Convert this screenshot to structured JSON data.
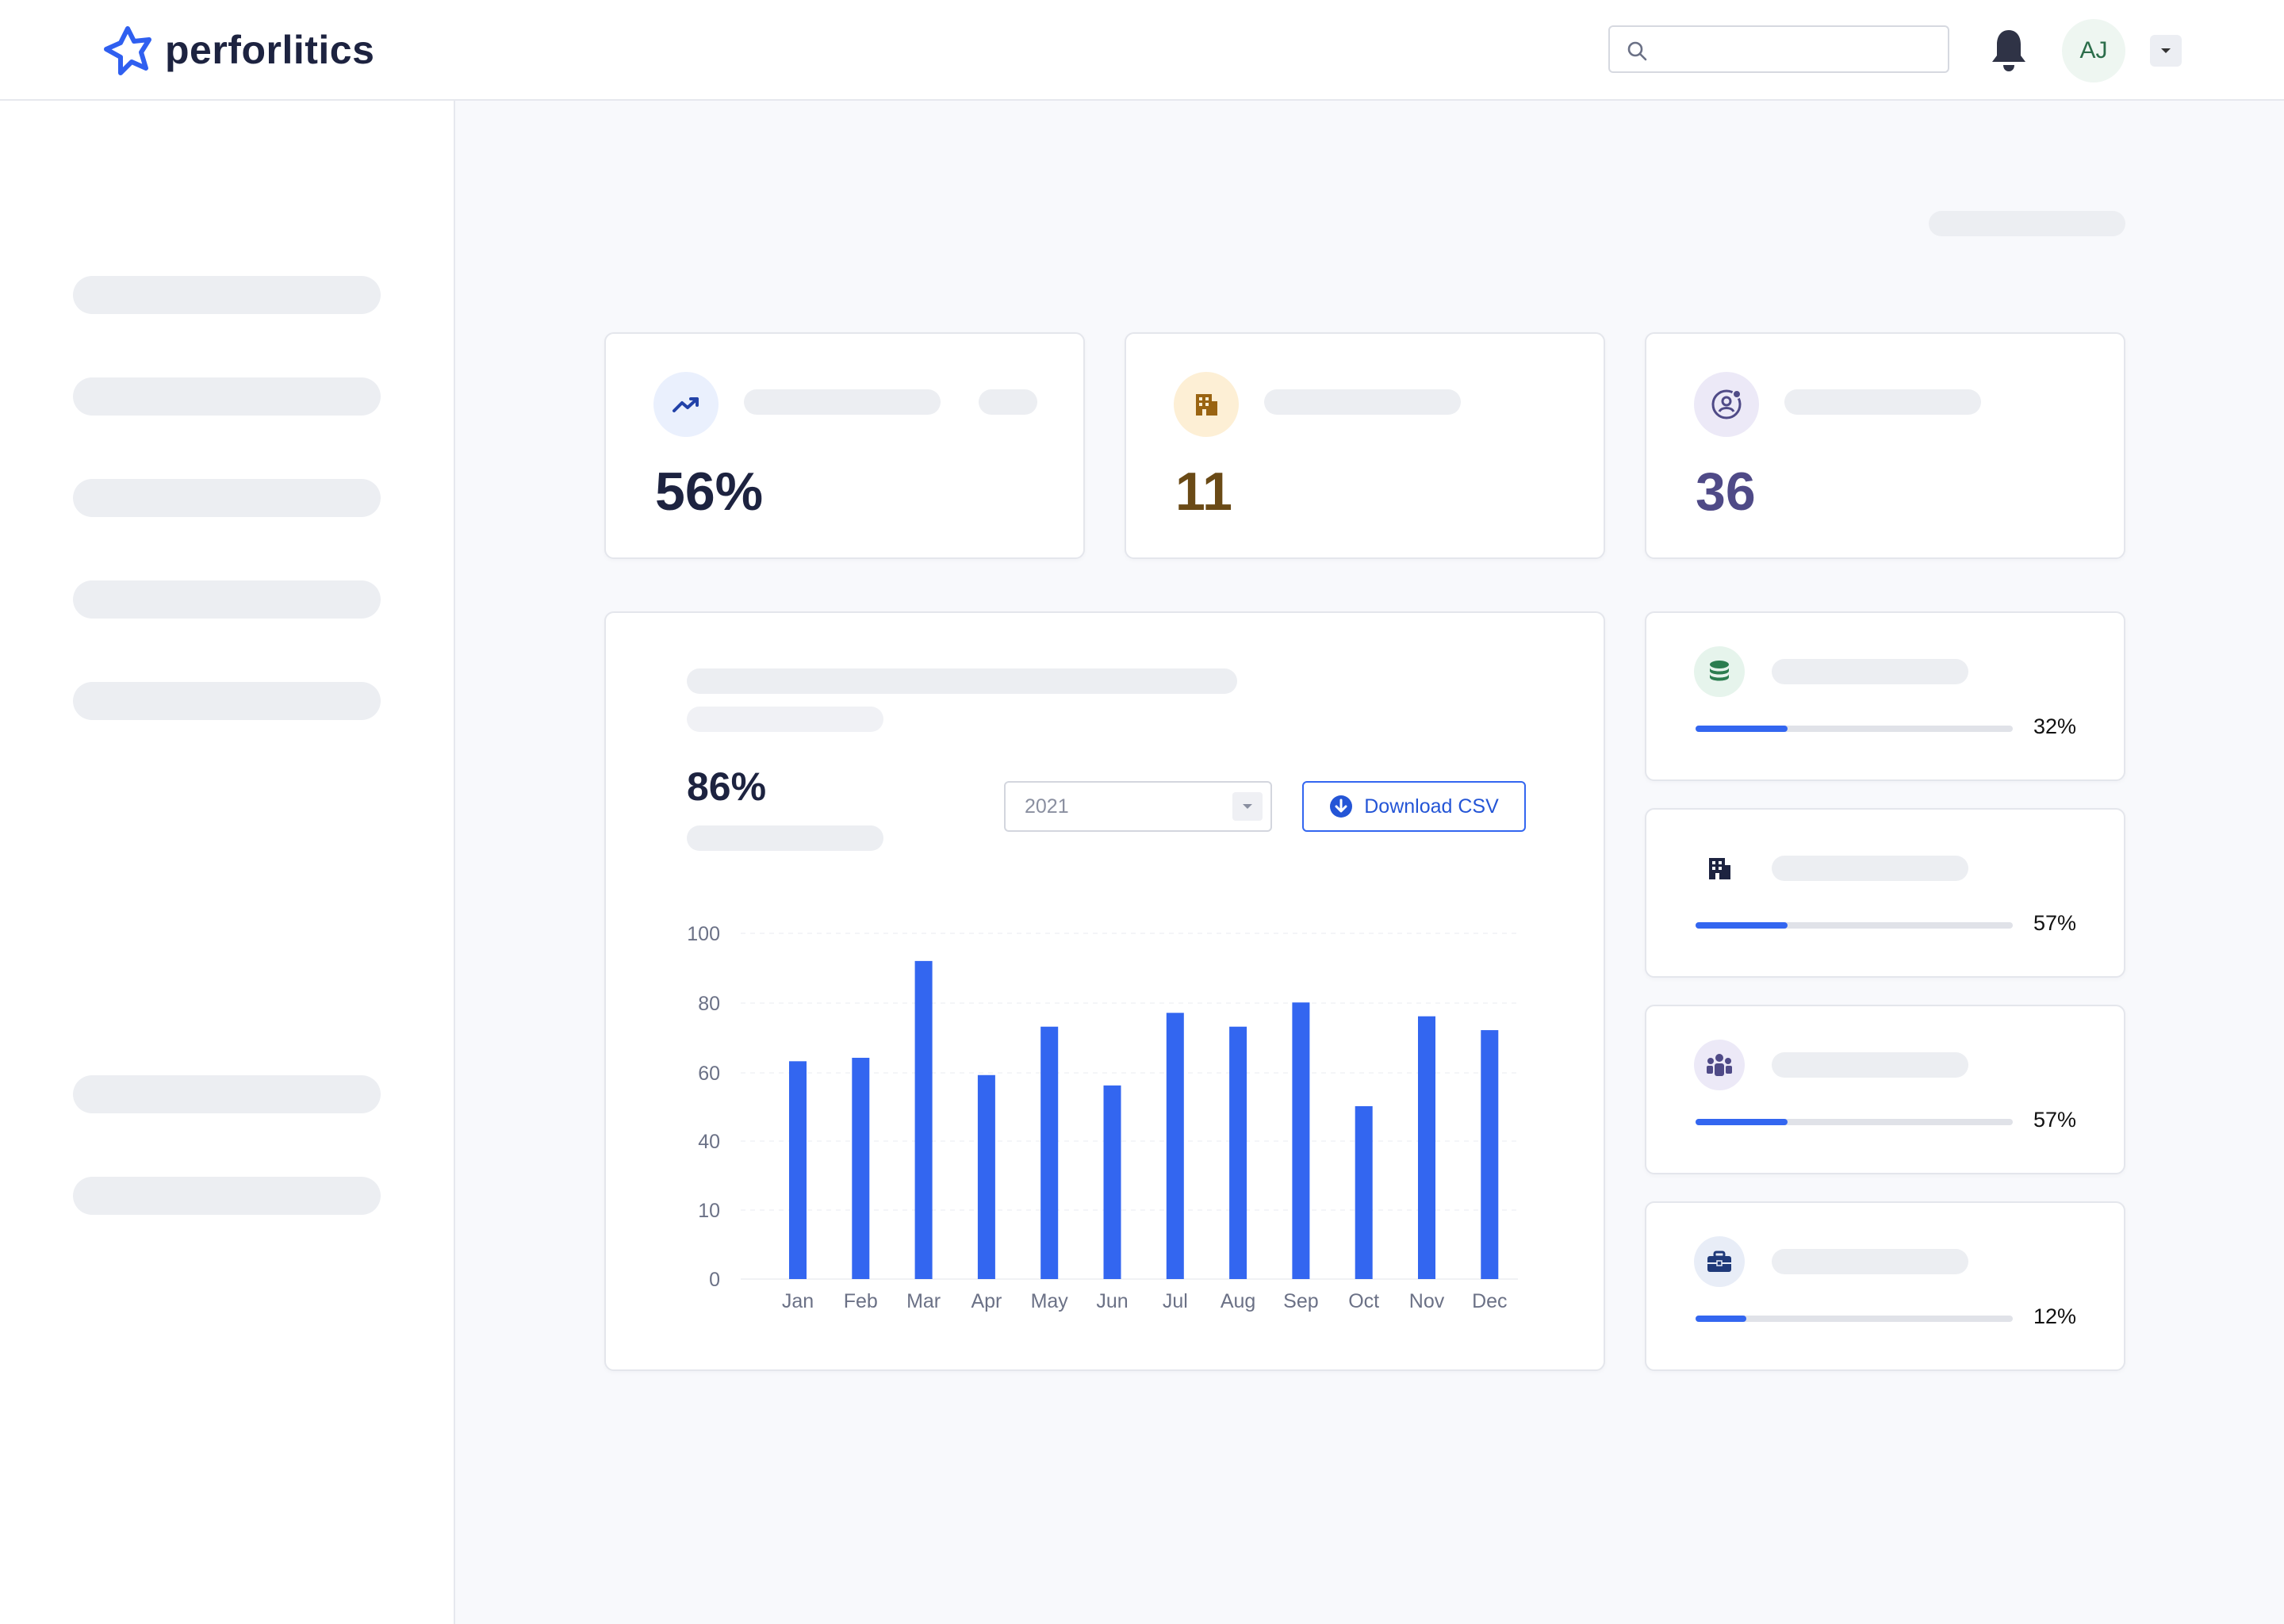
{
  "app": {
    "name": "perforlitics"
  },
  "header": {
    "search": {
      "placeholder": "",
      "value": ""
    },
    "avatar_initials": "AJ"
  },
  "stats": [
    {
      "value": "56%",
      "icon": "trending-up-icon",
      "color": "#1d2340",
      "icon_bg": "#eaf0fd",
      "icon_color": "#2242a8"
    },
    {
      "value": "11",
      "icon": "building-icon",
      "color": "#6a4a16",
      "icon_bg": "#fdefd5",
      "icon_color": "#9a6412"
    },
    {
      "value": "36",
      "icon": "user-circle-icon",
      "color": "#4f4a87",
      "icon_bg": "#ece9f7",
      "icon_color": "#4f4a87"
    }
  ],
  "chart_panel": {
    "metric": "86%",
    "year_select": {
      "value": "2021"
    },
    "download_label": "Download CSV"
  },
  "chart_data": {
    "type": "bar",
    "categories": [
      "Jan",
      "Feb",
      "Mar",
      "Apr",
      "May",
      "Jun",
      "Jul",
      "Aug",
      "Sep",
      "Oct",
      "Nov",
      "Dec"
    ],
    "values": [
      63,
      64,
      92,
      59,
      73,
      56,
      77,
      73,
      80,
      50,
      76,
      72
    ],
    "yticks": [
      "0",
      "10",
      "40",
      "60",
      "80",
      "100"
    ],
    "ylim": [
      0,
      100
    ],
    "title": "",
    "xlabel": "",
    "ylabel": "",
    "bar_color": "#3366f0",
    "grid": true
  },
  "side_cards": [
    {
      "icon": "coins-icon",
      "percent": "32%",
      "progress": 0.29,
      "icon_bg": "#e6f4ec",
      "icon_color": "#2b7d4f"
    },
    {
      "icon": "building-icon",
      "percent": "57%",
      "progress": 0.29,
      "icon_bg": "#ffffff",
      "icon_color": "#1d2340"
    },
    {
      "icon": "team-icon",
      "percent": "57%",
      "progress": 0.29,
      "icon_bg": "#ece9f7",
      "icon_color": "#4f4a87"
    },
    {
      "icon": "briefcase-icon",
      "percent": "12%",
      "progress": 0.16,
      "icon_bg": "#e8edf7",
      "icon_color": "#1f3a7a"
    }
  ]
}
